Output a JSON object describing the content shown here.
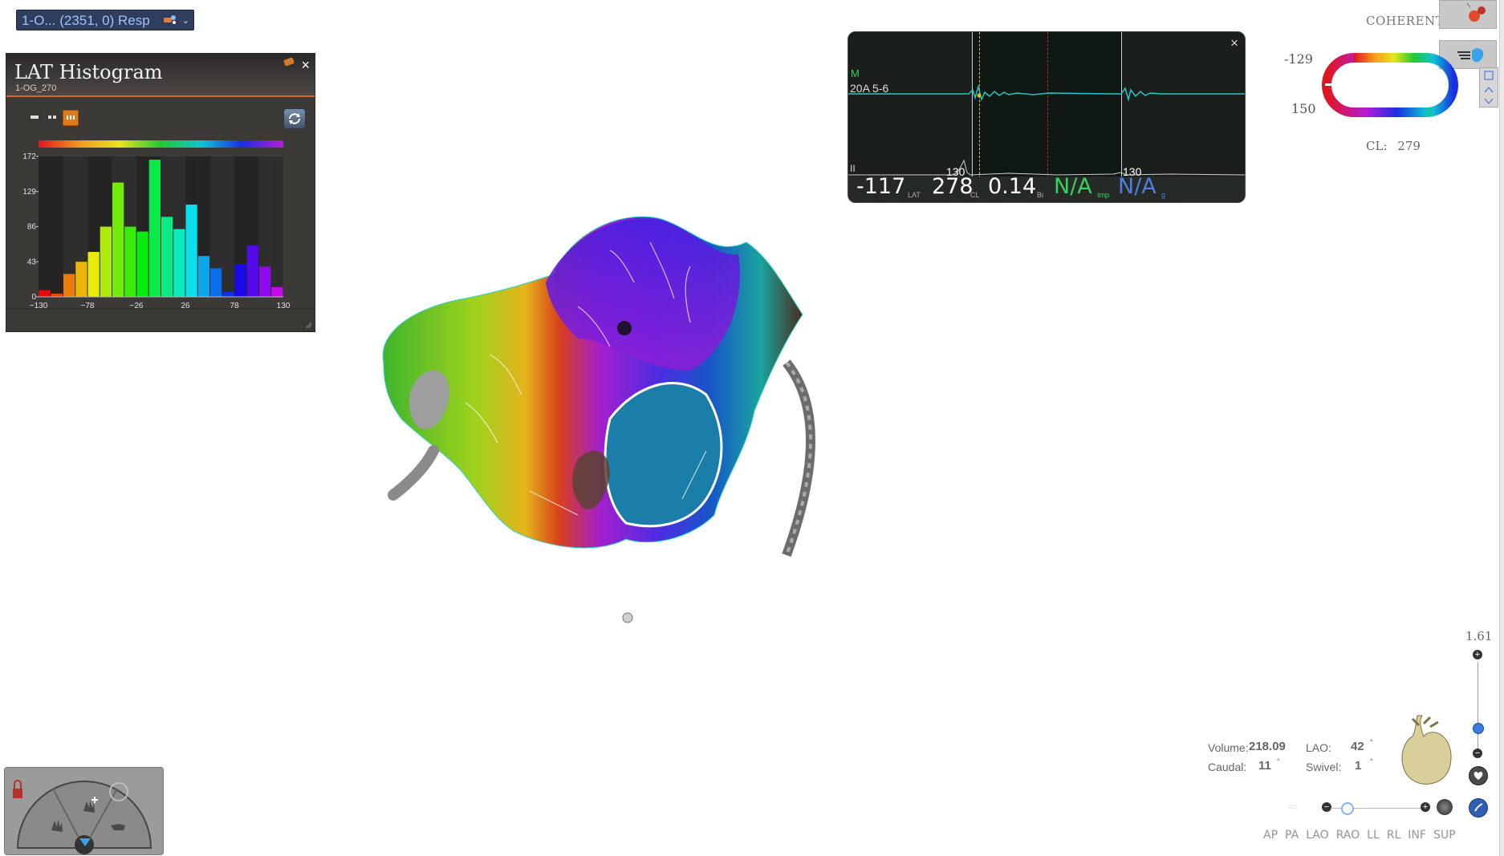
{
  "map_selector": {
    "label": "1-O... (2351, 0) Resp",
    "icon": "catheter-icon",
    "chevron": "chevron-down-icon"
  },
  "histogram": {
    "title": "LAT Histogram",
    "subtitle": "1-OG_270",
    "close": "×",
    "buttons": [
      "single-bar-view",
      "double-bar-view",
      "triple-bar-view"
    ],
    "sync_icon": "sync-icon",
    "colors": {
      "header_rule": "#d3692b",
      "active_button": "#e07a1f"
    }
  },
  "chart_data": {
    "type": "bar",
    "x_ticks": [
      "-130",
      "-78",
      "-26",
      "26",
      "78",
      "130"
    ],
    "y_ticks": [
      "172",
      "129",
      "86",
      "43",
      "0"
    ],
    "ylim": [
      0,
      172
    ],
    "xlim": [
      -130,
      130
    ],
    "values": [
      8,
      4,
      28,
      43,
      55,
      86,
      140,
      86,
      80,
      168,
      98,
      83,
      113,
      50,
      35,
      6,
      40,
      63,
      37,
      12
    ]
  },
  "signal": {
    "marker_label": "M",
    "channel_1": "20A 5-6",
    "channel_2": "II",
    "marker_1": "130",
    "marker_2": "130",
    "lat_value": "-117",
    "lat_label": "LAT",
    "cl_value": "278",
    "cl_label": "CL",
    "bi_value": "0.14",
    "bi_label": "Bi",
    "imp_value": "N/A",
    "imp_label": "Imp",
    "g_value": "N/A",
    "g_label": "g",
    "close": "×",
    "colors": {
      "trace": "#27c4c4",
      "imp": "#36d15c",
      "g": "#4c7fe0"
    }
  },
  "coherent_label": "COHERENT",
  "color_scale": {
    "top": "-129",
    "bottom": "150"
  },
  "cl_readout": {
    "label": "CL:",
    "value": "279"
  },
  "zoom": {
    "value": "1.61",
    "level_fraction": 0.35
  },
  "stats": {
    "volume_label": "Volume:",
    "volume_value": "218.09",
    "caudal_label": "Caudal:",
    "caudal_value": "11",
    "lao_label": "LAO:",
    "lao_value": "42",
    "swivel_label": "Swivel:",
    "swivel_value": "1",
    "degree": "°"
  },
  "views": [
    "AP",
    "PA",
    "LAO",
    "RAO",
    "LL",
    "RL",
    "INF",
    "SUP"
  ],
  "tool_dial": {
    "icons": [
      "rotate-hand-icon",
      "add-point-icon",
      "pan-hand-icon",
      "filter-icon"
    ]
  }
}
